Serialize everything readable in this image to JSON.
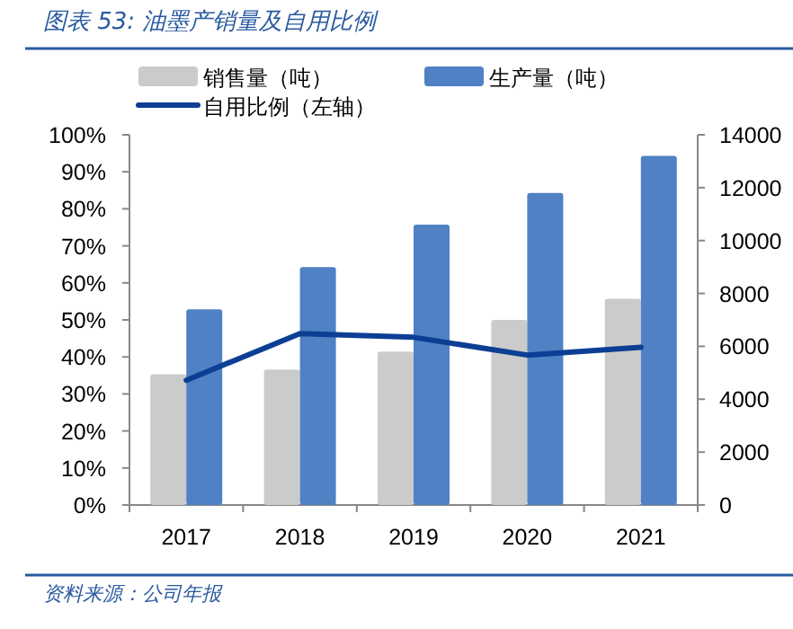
{
  "chart_data": {
    "type": "bar",
    "title": "图表 53: 油墨产销量及自用比例",
    "categories": [
      "2017",
      "2018",
      "2019",
      "2020",
      "2021"
    ],
    "series": [
      {
        "name": "销售量（吨）",
        "axis": "y2",
        "color": "#cbcbcb",
        "values": [
          4940,
          5120,
          5800,
          7000,
          7800
        ]
      },
      {
        "name": "生产量（吨）",
        "axis": "y2",
        "color": "#4f81c4",
        "values": [
          7400,
          9000,
          10600,
          11800,
          13200
        ]
      },
      {
        "name": "自用比例（左轴）",
        "type": "line",
        "axis": "y",
        "color": "#0c3f94",
        "values": [
          33.7,
          46.3,
          45.3,
          40.5,
          42.6
        ]
      }
    ],
    "ylim": [
      0,
      100
    ],
    "yticks": [
      {
        "value": 0,
        "label": "0%"
      },
      {
        "value": 10,
        "label": "10%"
      },
      {
        "value": 20,
        "label": "20%"
      },
      {
        "value": 30,
        "label": "30%"
      },
      {
        "value": 40,
        "label": "40%"
      },
      {
        "value": 50,
        "label": "50%"
      },
      {
        "value": 60,
        "label": "60%"
      },
      {
        "value": 70,
        "label": "70%"
      },
      {
        "value": 80,
        "label": "80%"
      },
      {
        "value": 90,
        "label": "90%"
      },
      {
        "value": 100,
        "label": "100%"
      }
    ],
    "y2lim": [
      0,
      14000
    ],
    "y2ticks": [
      0,
      2000,
      4000,
      6000,
      8000,
      10000,
      12000,
      14000
    ],
    "legend": "top",
    "grid": false,
    "annotations": [
      "资料来源：公司年报"
    ]
  }
}
